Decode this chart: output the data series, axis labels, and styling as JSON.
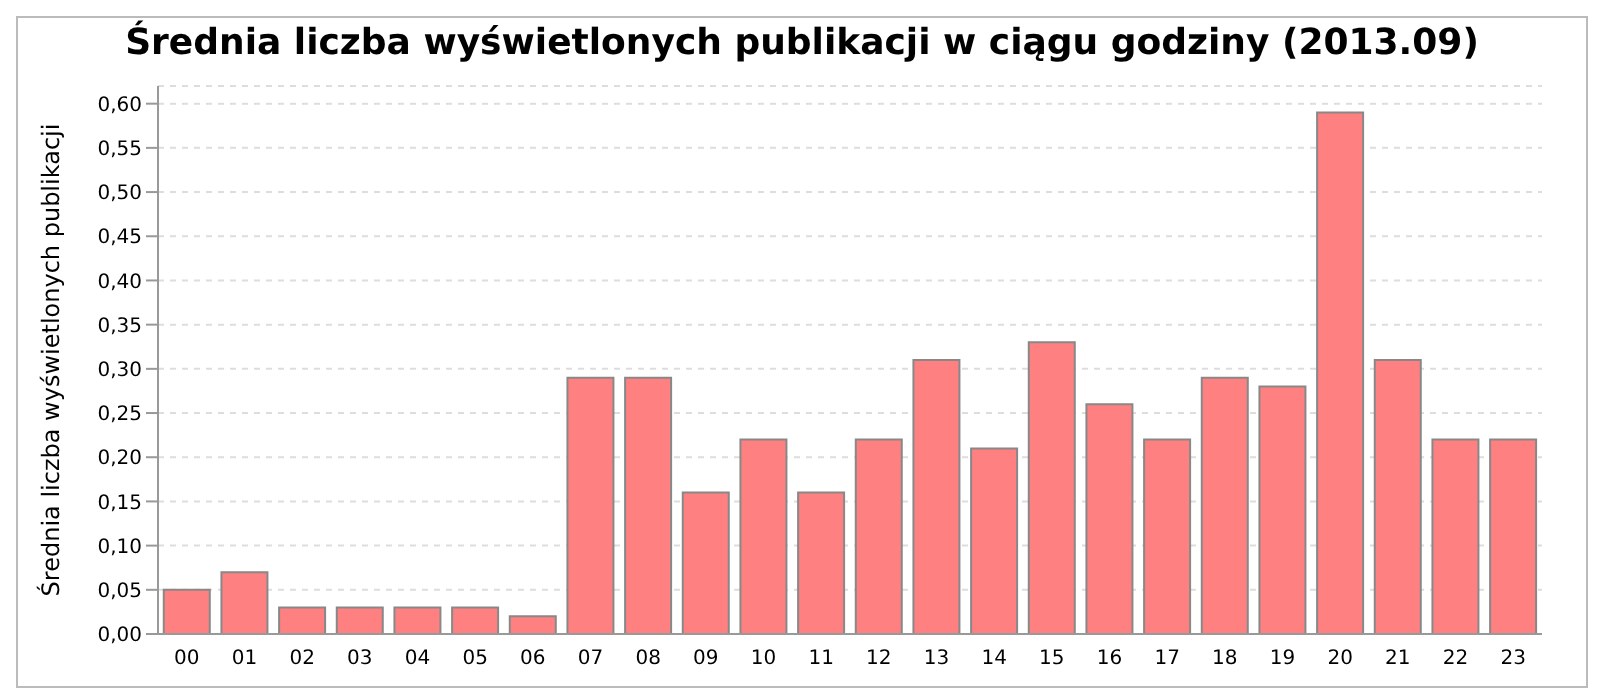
{
  "chart_data": {
    "type": "bar",
    "title": "Średnia liczba wyświetlonych publikacji w ciągu godziny (2013.09)",
    "ylabel": "Średnia liczba wyświetlonych publikacji",
    "categories": [
      "00",
      "01",
      "02",
      "03",
      "04",
      "05",
      "06",
      "07",
      "08",
      "09",
      "10",
      "11",
      "12",
      "13",
      "14",
      "15",
      "16",
      "17",
      "18",
      "19",
      "20",
      "21",
      "22",
      "23"
    ],
    "values": [
      0.05,
      0.07,
      0.03,
      0.03,
      0.03,
      0.03,
      0.02,
      0.29,
      0.29,
      0.16,
      0.22,
      0.16,
      0.22,
      0.31,
      0.21,
      0.33,
      0.26,
      0.22,
      0.29,
      0.28,
      0.59,
      0.31,
      0.22,
      0.22
    ],
    "color": "#ff8080",
    "ylim": [
      0,
      0.62
    ],
    "yticks": [
      {
        "value": 0,
        "label": "0,00"
      },
      {
        "value": 0.05,
        "label": "0,05"
      },
      {
        "value": 0.1,
        "label": "0,10"
      },
      {
        "value": 0.15,
        "label": "0,15"
      },
      {
        "value": 0.2,
        "label": "0,20"
      },
      {
        "value": 0.25,
        "label": "0,25"
      },
      {
        "value": 0.3,
        "label": "0,30"
      },
      {
        "value": 0.35,
        "label": "0,35"
      },
      {
        "value": 0.4,
        "label": "0,40"
      },
      {
        "value": 0.45,
        "label": "0,45"
      },
      {
        "value": 0.5,
        "label": "0,50"
      },
      {
        "value": 0.55,
        "label": "0,55"
      },
      {
        "value": 0.6,
        "label": "0,60"
      }
    ],
    "grid": "y"
  }
}
